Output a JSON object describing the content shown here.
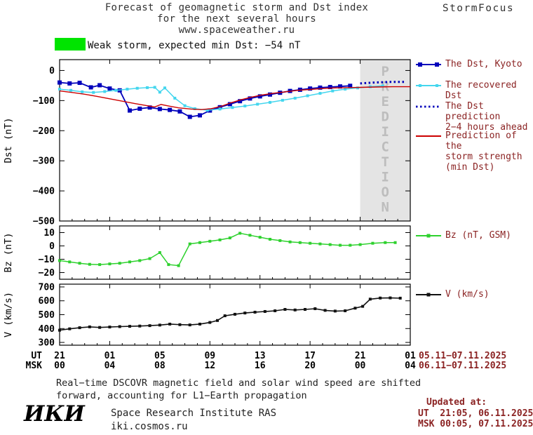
{
  "header": {
    "title_line1": "Forecast of geomagnetic storm and Dst index",
    "title_line2": "for the next several hours",
    "title_line3": "www.spaceweather.ru",
    "brand": "StormFocus"
  },
  "status": {
    "label": "Weak storm, expected min Dst: −54 nT",
    "swatch_color": "#00e400"
  },
  "legend": {
    "dst_panel": [
      {
        "label_lines": [
          "The Dst, Kyoto"
        ],
        "color": "#0000bb",
        "style": "line-squares",
        "marker_size": 6
      },
      {
        "label_lines": [
          "The recovered Dst"
        ],
        "color": "#44d6ee",
        "style": "line-squares",
        "marker_size": 4
      },
      {
        "label_lines": [
          "The Dst prediction",
          "2−4 hours ahead"
        ],
        "color": "#0000bb",
        "style": "dotted"
      },
      {
        "label_lines": [
          "Prediction of the",
          "storm strength",
          "(min Dst)"
        ],
        "color": "#cc0000",
        "style": "line"
      }
    ],
    "bz_panel": [
      {
        "label_lines": [
          "Bz (nT, GSM)"
        ],
        "color": "#2ed12e",
        "style": "line-square"
      }
    ],
    "v_panel": [
      {
        "label_lines": [
          "V (km/s)"
        ],
        "color": "#111111",
        "style": "line-square"
      }
    ]
  },
  "xaxis": {
    "ut_label": "UT",
    "msk_label": "MSK",
    "tick_hours": [
      0,
      4,
      8,
      12,
      16,
      20,
      24,
      28
    ],
    "ut_ticks": [
      "21",
      "01",
      "05",
      "09",
      "13",
      "17",
      "21",
      "01"
    ],
    "msk_ticks": [
      "00",
      "04",
      "08",
      "12",
      "16",
      "20",
      "00",
      "04"
    ],
    "ut_dates": "05.11−07.11.2025",
    "msk_dates": "06.11−07.11.2025"
  },
  "footer": {
    "note_line1": "Real−time DSCOVR magnetic field and solar wind speed are shifted",
    "note_line2": "forward, accounting for L1−Earth propagation",
    "logo": "ИКИ",
    "institute": "Space Research Institute RAS",
    "site": "iki.cosmos.ru",
    "updated_label": "Updated at:",
    "updated_ut": "UT  21:05, 06.11.2025",
    "updated_msk": "MSK 00:05, 07.11.2025"
  },
  "chart_data": [
    {
      "id": "dst",
      "type": "line",
      "ylabel": "Dst (nT)",
      "ylim": [
        36,
        -500
      ],
      "yticks": [
        0,
        -100,
        -200,
        -300,
        -400,
        -500
      ],
      "xlim": [
        0,
        28
      ],
      "prediction_band": {
        "x0": 24,
        "x1": 28,
        "label": "PREDICTION"
      },
      "series": [
        {
          "name": "The Dst, Kyoto",
          "color": "#0000bb",
          "width": 1.8,
          "marker": true,
          "marker_size": 6,
          "points": [
            [
              0,
              -40
            ],
            [
              0.8,
              -43
            ],
            [
              1.6,
              -41
            ],
            [
              2.5,
              -56
            ],
            [
              3.2,
              -49
            ],
            [
              4,
              -60
            ],
            [
              4.8,
              -66
            ],
            [
              5.6,
              -133
            ],
            [
              6.4,
              -127
            ],
            [
              7.2,
              -123
            ],
            [
              8,
              -128
            ],
            [
              8.8,
              -131
            ],
            [
              9.6,
              -136
            ],
            [
              10.4,
              -154
            ],
            [
              11.2,
              -149
            ],
            [
              12,
              -133
            ],
            [
              12.8,
              -122
            ],
            [
              13.6,
              -112
            ],
            [
              14.4,
              -102
            ],
            [
              15.2,
              -93
            ],
            [
              16,
              -86
            ],
            [
              16.8,
              -80
            ],
            [
              17.6,
              -74
            ],
            [
              18.4,
              -68
            ],
            [
              19.2,
              -64
            ],
            [
              20,
              -60
            ],
            [
              20.8,
              -57
            ],
            [
              21.6,
              -55
            ],
            [
              22.4,
              -53
            ],
            [
              23.2,
              -51
            ]
          ]
        },
        {
          "name": "The recovered Dst",
          "color": "#44d6ee",
          "width": 1.5,
          "marker": true,
          "marker_size": 4,
          "points": [
            [
              0,
              -62
            ],
            [
              0.9,
              -66
            ],
            [
              1.8,
              -71
            ],
            [
              2.7,
              -73
            ],
            [
              3.6,
              -70
            ],
            [
              4.5,
              -66
            ],
            [
              5.4,
              -62
            ],
            [
              6.2,
              -59
            ],
            [
              7,
              -57
            ],
            [
              7.6,
              -56
            ],
            [
              8,
              -72
            ],
            [
              8.4,
              -58
            ],
            [
              9.2,
              -92
            ],
            [
              10,
              -117
            ],
            [
              10.8,
              -127
            ],
            [
              11.8,
              -132
            ],
            [
              12.8,
              -128
            ],
            [
              13.8,
              -123
            ],
            [
              14.8,
              -118
            ],
            [
              15.8,
              -112
            ],
            [
              16.8,
              -106
            ],
            [
              17.8,
              -99
            ],
            [
              18.8,
              -92
            ],
            [
              19.8,
              -84
            ],
            [
              20.8,
              -76
            ],
            [
              21.8,
              -68
            ],
            [
              22.8,
              -62
            ],
            [
              23.8,
              -58
            ],
            [
              24.8,
              -54
            ],
            [
              25.8,
              -51
            ]
          ]
        },
        {
          "name": "The Dst prediction 2−4 hours ahead",
          "color": "#0000bb",
          "width": 3,
          "dash": "2.5 3.5",
          "marker": false,
          "points": [
            [
              24,
              -43
            ],
            [
              25.2,
              -40
            ],
            [
              26.4,
              -38
            ],
            [
              27.6,
              -38
            ]
          ]
        },
        {
          "name": "Prediction of the storm strength (min Dst)",
          "color": "#cc0000",
          "width": 1.4,
          "marker": false,
          "points": [
            [
              0,
              -68
            ],
            [
              1,
              -73
            ],
            [
              2,
              -79
            ],
            [
              3,
              -86
            ],
            [
              4,
              -94
            ],
            [
              5,
              -102
            ],
            [
              6,
              -110
            ],
            [
              7,
              -117
            ],
            [
              7.6,
              -121
            ],
            [
              8.1,
              -113
            ],
            [
              8.7,
              -118
            ],
            [
              9.5,
              -124
            ],
            [
              10.5,
              -128
            ],
            [
              11.3,
              -130
            ],
            [
              12.1,
              -127
            ],
            [
              12.9,
              -119
            ],
            [
              13.7,
              -107
            ],
            [
              14.5,
              -97
            ],
            [
              15.3,
              -89
            ],
            [
              16.1,
              -82
            ],
            [
              17,
              -76
            ],
            [
              18,
              -71
            ],
            [
              19,
              -66
            ],
            [
              20,
              -63
            ],
            [
              21,
              -60
            ],
            [
              22,
              -58
            ],
            [
              23,
              -57
            ],
            [
              24,
              -56
            ],
            [
              25.3,
              -55
            ],
            [
              26.6,
              -54
            ],
            [
              28,
              -54
            ]
          ]
        }
      ]
    },
    {
      "id": "bz",
      "type": "line",
      "ylabel": "Bz (nT)",
      "ylim": [
        15,
        -25
      ],
      "yticks": [
        10,
        0,
        -10,
        -20
      ],
      "xlim": [
        0,
        28
      ],
      "series": [
        {
          "name": "Bz (nT, GSM)",
          "color": "#2ed12e",
          "width": 1.5,
          "marker": true,
          "marker_size": 4,
          "points": [
            [
              0,
              -11
            ],
            [
              0.8,
              -12
            ],
            [
              1.6,
              -13
            ],
            [
              2.4,
              -13.8
            ],
            [
              3.2,
              -14
            ],
            [
              4,
              -13.5
            ],
            [
              4.8,
              -13
            ],
            [
              5.6,
              -12
            ],
            [
              6.4,
              -11
            ],
            [
              7.2,
              -9.5
            ],
            [
              8,
              -5
            ],
            [
              8.7,
              -14
            ],
            [
              9.5,
              -14.8
            ],
            [
              10.4,
              1.5
            ],
            [
              11.2,
              2.5
            ],
            [
              12,
              3.5
            ],
            [
              12.8,
              4.5
            ],
            [
              13.6,
              6
            ],
            [
              14.4,
              9.5
            ],
            [
              15.2,
              8
            ],
            [
              16,
              6.5
            ],
            [
              16.8,
              5
            ],
            [
              17.6,
              4
            ],
            [
              18.4,
              3
            ],
            [
              19.2,
              2.5
            ],
            [
              20,
              2
            ],
            [
              20.8,
              1.5
            ],
            [
              21.6,
              1
            ],
            [
              22.4,
              0.5
            ],
            [
              23.2,
              0.5
            ],
            [
              24,
              1
            ],
            [
              25,
              2
            ],
            [
              26,
              2.5
            ],
            [
              26.8,
              2.5
            ]
          ]
        }
      ]
    },
    {
      "id": "v",
      "type": "line",
      "ylabel": "V (km/s)",
      "ylim": [
        720,
        280
      ],
      "yticks": [
        700,
        600,
        500,
        400,
        300
      ],
      "xlim": [
        0,
        28
      ],
      "series": [
        {
          "name": "V (km/s)",
          "color": "#111111",
          "width": 1.6,
          "marker": true,
          "marker_size": 4,
          "points": [
            [
              0,
              388
            ],
            [
              0.8,
              398
            ],
            [
              1.6,
              406
            ],
            [
              2.4,
              412
            ],
            [
              3.2,
              408
            ],
            [
              4,
              411
            ],
            [
              4.8,
              414
            ],
            [
              5.6,
              416
            ],
            [
              6.4,
              418
            ],
            [
              7.2,
              421
            ],
            [
              8,
              425
            ],
            [
              8.8,
              432
            ],
            [
              9.6,
              428
            ],
            [
              10.4,
              426
            ],
            [
              11.2,
              432
            ],
            [
              12,
              444
            ],
            [
              12.6,
              458
            ],
            [
              13.2,
              492
            ],
            [
              14,
              503
            ],
            [
              14.8,
              512
            ],
            [
              15.6,
              518
            ],
            [
              16.4,
              523
            ],
            [
              17.2,
              528
            ],
            [
              18,
              538
            ],
            [
              18.8,
              534
            ],
            [
              19.6,
              538
            ],
            [
              20.4,
              543
            ],
            [
              21.2,
              531
            ],
            [
              22,
              526
            ],
            [
              22.8,
              528
            ],
            [
              23.6,
              547
            ],
            [
              24.2,
              560
            ],
            [
              24.8,
              612
            ],
            [
              25.6,
              620
            ],
            [
              26.4,
              621
            ],
            [
              27.2,
              619
            ]
          ]
        }
      ]
    }
  ]
}
